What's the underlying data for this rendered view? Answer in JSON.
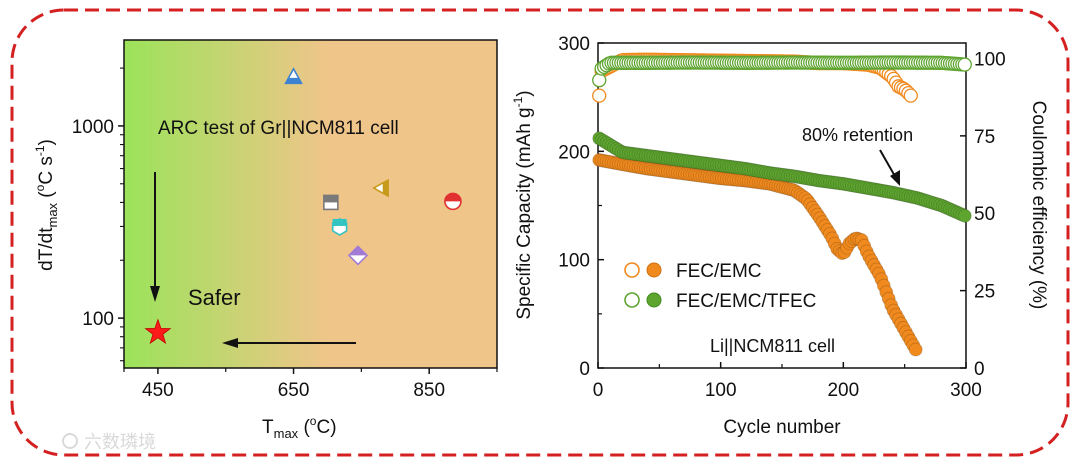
{
  "chart_data": [
    {
      "type": "scatter",
      "title": "",
      "annotation": "ARC test of Gr||NCM811 cell",
      "arrow_label": "Safer",
      "xlabel": {
        "base": "T",
        "sub": "max",
        "tail": " (",
        "sup": "o",
        "unit": "C)"
      },
      "ylabel": {
        "base": "dT/dt",
        "sub": "max",
        "tail": " (",
        "sup1": "o",
        "mid": "C s",
        "sup2": "-1",
        "end": ")"
      },
      "xscale": "linear",
      "yscale": "log",
      "xlim": [
        400,
        950
      ],
      "ylim": [
        55,
        2800
      ],
      "xticks": [
        450,
        650,
        850
      ],
      "yticks": [
        100,
        1000
      ],
      "xtick_labels": [
        "450",
        "650",
        "850"
      ],
      "ytick_labels": [
        "100",
        "1000"
      ],
      "background": {
        "left_color": "#9be35a",
        "right_color": "#f0c58a"
      },
      "points": [
        {
          "marker": "triangle-up",
          "x": 650,
          "y": 1800,
          "color": "#3e82d2"
        },
        {
          "marker": "square",
          "x": 705,
          "y": 400,
          "color": "#7a7a7a"
        },
        {
          "marker": "hexagon",
          "x": 718,
          "y": 298,
          "color": "#33c4c2"
        },
        {
          "marker": "triangle-left",
          "x": 780,
          "y": 475,
          "color": "#c69a1a"
        },
        {
          "marker": "diamond",
          "x": 745,
          "y": 212,
          "color": "#a07ad4"
        },
        {
          "marker": "circle",
          "x": 885,
          "y": 405,
          "color": "#e03030"
        },
        {
          "marker": "star",
          "x": 450,
          "y": 84,
          "color": "#ff1a1a"
        }
      ]
    },
    {
      "type": "scatter",
      "title": "",
      "xlabel": "Cycle number",
      "ylabel_left": {
        "text": "Specific Capacity (mAh g",
        "sup": "-1",
        "end": ")"
      },
      "ylabel_right": "Coulombic efficiency (%)",
      "xlim": [
        0,
        300
      ],
      "ylim_left": [
        0,
        300
      ],
      "ylim_right": [
        0,
        105
      ],
      "xticks": [
        0,
        100,
        200,
        300
      ],
      "yticks_left": [
        0,
        100,
        200,
        300
      ],
      "yticks_right": [
        0,
        25,
        50,
        75,
        100
      ],
      "cell_label": "Li||NCM811 cell",
      "annotation": "80% retention",
      "legend": [
        {
          "name": "FEC/EMC",
          "color": "#f08a1e"
        },
        {
          "name": "FEC/EMC/TFEC",
          "color": "#5ea530"
        }
      ],
      "series": [
        {
          "name": "FEC/EMC capacity",
          "axis": "left",
          "filled": true,
          "color": "#f08a1e",
          "x": [
            1,
            20,
            40,
            60,
            80,
            100,
            120,
            140,
            160,
            170,
            180,
            190,
            195,
            200,
            205,
            210,
            215,
            220,
            230,
            240,
            250,
            255,
            260
          ],
          "y": [
            192,
            188,
            184,
            181,
            178,
            175,
            173,
            170,
            164,
            156,
            140,
            122,
            110,
            105,
            115,
            120,
            118,
            105,
            85,
            55,
            35,
            25,
            15
          ]
        },
        {
          "name": "FEC/EMC CE",
          "axis": "right",
          "filled": false,
          "color": "#f08a1e",
          "x": [
            1,
            2,
            3,
            20,
            40,
            60,
            80,
            100,
            120,
            140,
            160,
            180,
            200,
            220,
            230,
            240,
            245,
            250,
            255
          ],
          "y": [
            88,
            92,
            96,
            99.5,
            99.6,
            99.5,
            99.4,
            99.3,
            99.2,
            99.1,
            99,
            98.5,
            98.5,
            98,
            97,
            94,
            91,
            90,
            88
          ]
        },
        {
          "name": "FEC/EMC/TFEC capacity",
          "axis": "left",
          "filled": true,
          "color": "#5ea530",
          "x": [
            1,
            20,
            40,
            60,
            80,
            100,
            120,
            140,
            160,
            180,
            200,
            220,
            240,
            260,
            280,
            290,
            300
          ],
          "y": [
            212,
            199,
            196,
            193,
            190,
            187,
            184,
            180,
            177,
            173,
            170,
            166,
            162,
            157,
            150,
            145,
            140
          ]
        },
        {
          "name": "FEC/EMC/TFEC CE",
          "axis": "right",
          "filled": false,
          "color": "#5ea530",
          "x": [
            1,
            2,
            10,
            40,
            80,
            120,
            160,
            200,
            240,
            280,
            300
          ],
          "y": [
            93,
            96.5,
            98.6,
            98.6,
            98.7,
            98.6,
            98.7,
            98.6,
            98.7,
            98.6,
            98
          ]
        }
      ]
    }
  ],
  "watermark": "六数璘境"
}
